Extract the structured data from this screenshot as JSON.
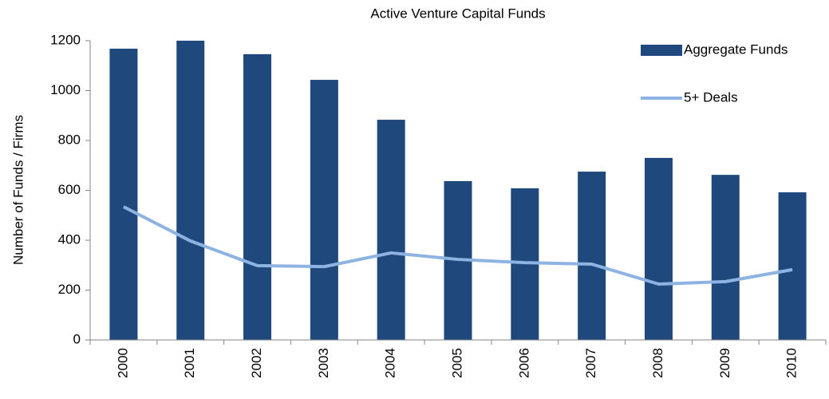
{
  "chart_data": {
    "type": "bar",
    "title": "Active Venture Capital Funds",
    "y_label": "Number of Funds / Firms",
    "categories": [
      "2000",
      "2001",
      "2002",
      "2003",
      "2004",
      "2005",
      "2006",
      "2007",
      "2008",
      "2009",
      "2010"
    ],
    "series": [
      {
        "name": "Aggregate Funds",
        "type": "bar",
        "color": "#1f497d",
        "values": [
          1168,
          1200,
          1146,
          1043,
          883,
          637,
          608,
          675,
          730,
          662,
          592
        ]
      },
      {
        "name": "5+ Deals",
        "type": "line",
        "color": "#8db3e2",
        "values": [
          534,
          397,
          298,
          294,
          349,
          323,
          310,
          304,
          224,
          234,
          282
        ]
      }
    ],
    "ylim": [
      0,
      1200
    ],
    "yticks": [
      0,
      200,
      400,
      600,
      800,
      1000,
      1200
    ],
    "grid": false,
    "legend": "upper right"
  }
}
